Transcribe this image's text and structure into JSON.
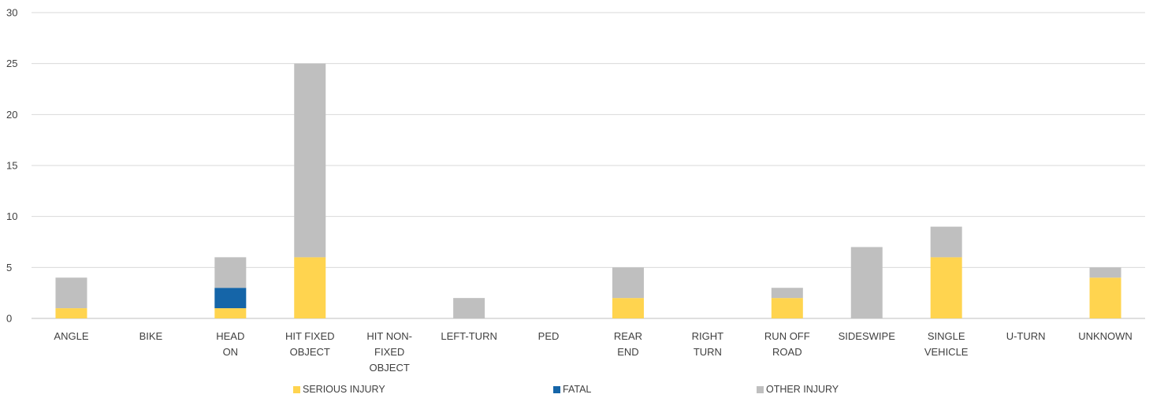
{
  "chart_data": {
    "type": "bar",
    "stacked": true,
    "categories": [
      [
        "ANGLE"
      ],
      [
        "BIKE"
      ],
      [
        "HEAD",
        "ON"
      ],
      [
        "HIT FIXED",
        "OBJECT"
      ],
      [
        "HIT NON-",
        "FIXED",
        "OBJECT"
      ],
      [
        "LEFT-TURN"
      ],
      [
        "PED"
      ],
      [
        "REAR",
        "END"
      ],
      [
        "RIGHT",
        "TURN"
      ],
      [
        "RUN OFF",
        "ROAD"
      ],
      [
        "SIDESWIPE"
      ],
      [
        "SINGLE",
        "VEHICLE"
      ],
      [
        "U-TURN"
      ],
      [
        "UNKNOWN"
      ]
    ],
    "series": [
      {
        "name": "SERIOUS INJURY",
        "color": "#FFD44F",
        "values": [
          1,
          0,
          1,
          6,
          0,
          0,
          0,
          2,
          0,
          2,
          0,
          6,
          0,
          4
        ]
      },
      {
        "name": "FATAL",
        "color": "#1565A8",
        "values": [
          0,
          0,
          2,
          0,
          0,
          0,
          0,
          0,
          0,
          0,
          0,
          0,
          0,
          0
        ]
      },
      {
        "name": "OTHER INJURY",
        "color": "#BFBFBF",
        "values": [
          3,
          0,
          3,
          19,
          0,
          2,
          0,
          3,
          0,
          1,
          7,
          3,
          0,
          1
        ]
      }
    ],
    "ylim": [
      0,
      30
    ],
    "yticks": [
      0,
      5,
      10,
      15,
      20,
      25,
      30
    ],
    "grid": true,
    "legend_position": "bottom",
    "title": "",
    "xlabel": "",
    "ylabel": ""
  }
}
